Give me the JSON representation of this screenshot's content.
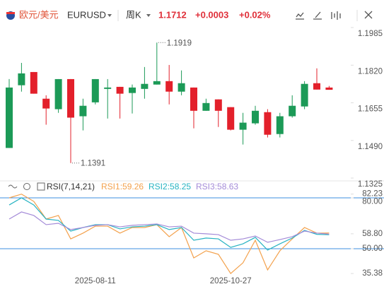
{
  "header": {
    "name": "欧元/美元",
    "symbol": "EURUSD",
    "period": "周K",
    "price": "1.1712",
    "change": "+0.0003",
    "change_pct": "+0.02%"
  },
  "chart_data": [
    {
      "type": "candlestick",
      "up_color": "#1c9a57",
      "down_color": "#e3202b",
      "open": [
        1.1457,
        1.1732,
        1.179,
        1.1673,
        1.1627,
        1.1759,
        1.1596,
        1.1657,
        1.1716,
        1.1725,
        1.1698,
        1.1716,
        1.1735,
        1.175,
        1.1704,
        1.1722,
        1.162,
        1.167,
        1.1636,
        1.1537,
        1.1565,
        1.1614,
        1.1518,
        1.1596,
        1.1639,
        1.1741,
        1.1722
      ],
      "high": [
        1.1759,
        1.183,
        1.179,
        1.1688,
        1.1759,
        1.1759,
        1.1673,
        1.1759,
        1.1759,
        1.1725,
        1.1735,
        1.1812,
        1.1919,
        1.1821,
        1.1797,
        1.1722,
        1.1673,
        1.167,
        1.1636,
        1.1611,
        1.1642,
        1.1627,
        1.1611,
        1.1688,
        1.175,
        1.1806,
        1.1729
      ],
      "low": [
        1.1457,
        1.1704,
        1.1695,
        1.1559,
        1.1611,
        1.1391,
        1.1534,
        1.1648,
        1.1586,
        1.1586,
        1.1608,
        1.1673,
        1.1735,
        1.1648,
        1.1688,
        1.1543,
        1.162,
        1.1549,
        1.1534,
        1.1472,
        1.1559,
        1.1503,
        1.1503,
        1.159,
        1.1627,
        1.1713,
        1.1713
      ],
      "close": [
        1.1722,
        1.1784,
        1.1695,
        1.163,
        1.1759,
        1.159,
        1.1642,
        1.1759,
        1.1722,
        1.1695,
        1.1722,
        1.1738,
        1.175,
        1.1704,
        1.1741,
        1.162,
        1.1654,
        1.162,
        1.1537,
        1.1568,
        1.162,
        1.1515,
        1.1596,
        1.1642,
        1.1738,
        1.1713,
        1.1712
      ],
      "ylim": [
        1.1325,
        1.1985
      ],
      "yticks": [
        1.1985,
        {
          "value": 1.182,
          "label": "1.1820"
        },
        1.1655,
        {
          "value": 1.149,
          "label": "1.1490"
        },
        1.1325
      ]
    },
    {
      "type": "line",
      "title": "RSI(7,14,21)",
      "categories": [
        null,
        null,
        null,
        null,
        null,
        null,
        null,
        "2025-08-11",
        null,
        null,
        null,
        null,
        null,
        null,
        null,
        null,
        null,
        null,
        "2025-10-27",
        null,
        null,
        null,
        null,
        null,
        null,
        null,
        null
      ],
      "series": [
        {
          "name": "RSI1",
          "color": "#f3a14c",
          "values": [
            80.0,
            82.2,
            77.9,
            67.5,
            69.6,
            55.8,
            59.2,
            63.3,
            63.3,
            59.2,
            62.5,
            62.5,
            64.2,
            57.1,
            62.5,
            44.6,
            48.8,
            46.7,
            35.4,
            41.7,
            55.0,
            37.5,
            48.8,
            55.8,
            62.5,
            59.2,
            59.26
          ]
        },
        {
          "name": "RSI2",
          "color": "#27b3c2",
          "values": [
            75.8,
            80.0,
            75.8,
            67.5,
            66.7,
            60.4,
            62.5,
            64.2,
            64.2,
            61.7,
            62.9,
            63.3,
            64.2,
            61.3,
            62.5,
            55.0,
            56.3,
            55.8,
            50.8,
            52.9,
            56.7,
            49.2,
            52.9,
            56.3,
            60.8,
            58.5,
            58.25
          ]
        },
        {
          "name": "RSI3",
          "color": "#a48bd8",
          "values": [
            67.5,
            71.7,
            69.6,
            64.2,
            65.0,
            61.3,
            62.5,
            63.8,
            64.2,
            62.9,
            63.8,
            64.2,
            64.6,
            62.9,
            63.3,
            59.2,
            58.8,
            58.3,
            55.0,
            55.8,
            57.5,
            53.8,
            55.4,
            57.1,
            60.4,
            59.2,
            58.63
          ]
        }
      ],
      "ylim": [
        32,
        86
      ],
      "yticks": [
        82.23,
        {
          "value": 80,
          "label": "80.00"
        },
        {
          "value": 58.8,
          "label": "58.80"
        },
        {
          "value": 50,
          "label": "50.00"
        },
        35.38
      ],
      "hlines": [
        80,
        50
      ],
      "hline_color": "#3d8fe0"
    }
  ]
}
